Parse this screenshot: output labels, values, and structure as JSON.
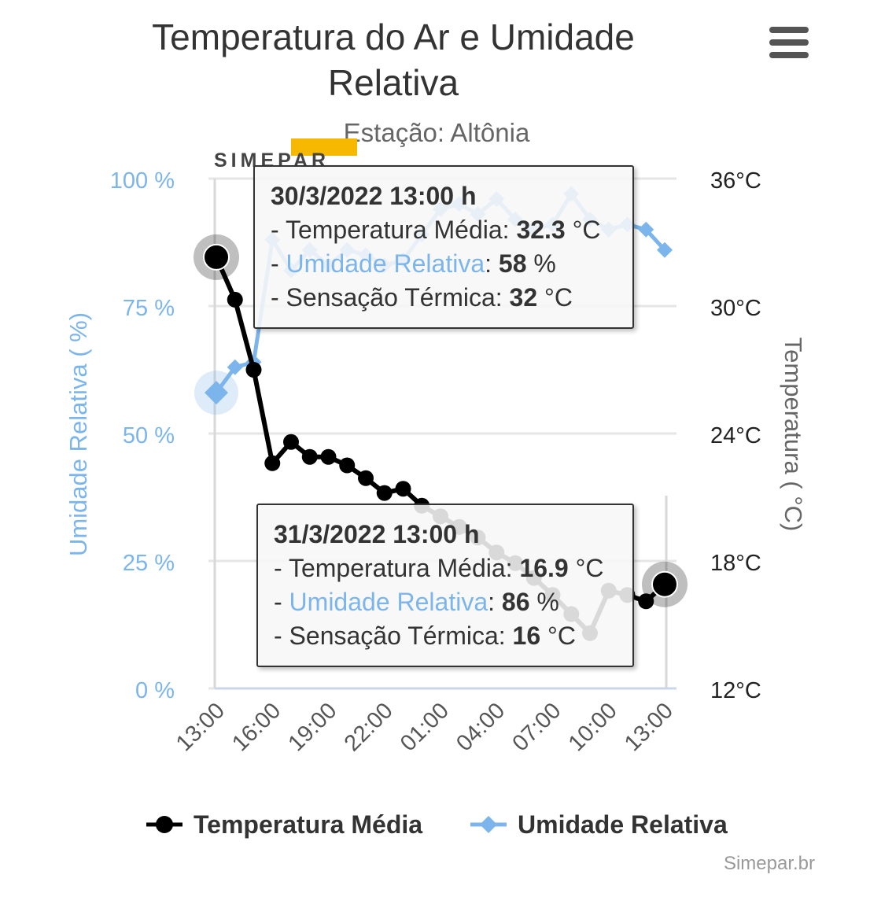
{
  "header": {
    "title": "Temperatura do Ar e Umidade Relativa",
    "subtitle": "Estação: Altônia",
    "menu_icon": "hamburger-menu-icon",
    "logo_text": "SIMEPAR"
  },
  "chart_data": {
    "type": "line",
    "title": "Temperatura do Ar e Umidade Relativa",
    "subtitle": "Estação: Altônia",
    "x_tick_labels": [
      "13:00",
      "16:00",
      "19:00",
      "22:00",
      "01:00",
      "04:00",
      "07:00",
      "10:00",
      "13:00"
    ],
    "y_left": {
      "label": "Umidade Relativa ( %)",
      "range": [
        0,
        100
      ],
      "ticks": [
        "0 %",
        "25 %",
        "50 %",
        "75 %",
        "100 %"
      ]
    },
    "y_right": {
      "label": "Temperatura ( °C)",
      "range": [
        12,
        36
      ],
      "ticks": [
        "12°C",
        "18°C",
        "24°C",
        "30°C",
        "36°C"
      ]
    },
    "grid": true,
    "legend_position": "bottom-center",
    "series": [
      {
        "name": "Temperatura Média",
        "axis": "right",
        "color": "#000000",
        "marker": "circle",
        "hours": [
          0,
          1,
          2,
          3,
          4,
          5,
          6,
          7,
          8,
          9,
          10,
          11,
          12,
          13,
          14,
          15,
          16,
          17,
          18,
          19,
          20,
          21,
          22,
          23,
          24
        ],
        "values": [
          32.3,
          30.3,
          27.0,
          22.6,
          23.6,
          22.9,
          22.9,
          22.5,
          21.9,
          21.2,
          21.4,
          20.6,
          20.1,
          19.6,
          19.1,
          18.4,
          17.9,
          17.2,
          16.4,
          15.5,
          14.6,
          16.6,
          16.4,
          16.1,
          16.9
        ]
      },
      {
        "name": "Umidade Relativa",
        "axis": "left",
        "color": "#7cb5ec",
        "marker": "diamond",
        "hours": [
          0,
          1,
          2,
          3,
          4,
          5,
          6,
          7,
          8,
          9,
          10,
          11,
          12,
          13,
          14,
          15,
          16,
          17,
          18,
          19,
          20,
          21,
          22,
          23,
          24
        ],
        "values": [
          58,
          63,
          64,
          88,
          82,
          86,
          83,
          86,
          85,
          83,
          84,
          89,
          94,
          95,
          93,
          96,
          92,
          90,
          91,
          97,
          92,
          90,
          91,
          90,
          86
        ]
      }
    ]
  },
  "tooltips": [
    {
      "date": "30/3/2022 13:00 h",
      "temp_label": "- Temperatura Média: ",
      "temp_value": "32.3",
      "temp_unit": " °C",
      "hum_prefix": "- ",
      "hum_label": "Umidade Relativa",
      "hum_sep": ": ",
      "hum_value": "58",
      "hum_unit": " %",
      "feel_label": "- Sensação Térmica: ",
      "feel_value": "32",
      "feel_unit": " °C"
    },
    {
      "date": "31/3/2022 13:00 h",
      "temp_label": "- Temperatura Média: ",
      "temp_value": "16.9",
      "temp_unit": " °C",
      "hum_prefix": "- ",
      "hum_label": "Umidade Relativa",
      "hum_sep": ": ",
      "hum_value": "86",
      "hum_unit": " %",
      "feel_label": "- Sensação Térmica: ",
      "feel_value": "16",
      "feel_unit": " °C"
    }
  ],
  "legend": {
    "temp": "Temperatura Média",
    "hum": "Umidade Relativa"
  },
  "credits": "Simepar.br"
}
